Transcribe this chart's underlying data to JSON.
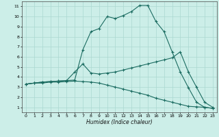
{
  "xlabel": "Humidex (Indice chaleur)",
  "background_color": "#cceee8",
  "grid_color": "#aad8d0",
  "line_color": "#1a6b60",
  "xlim": [
    -0.5,
    23.5
  ],
  "ylim": [
    0.5,
    11.5
  ],
  "xticks": [
    0,
    1,
    2,
    3,
    4,
    5,
    6,
    7,
    8,
    9,
    10,
    11,
    12,
    13,
    14,
    15,
    16,
    17,
    18,
    19,
    20,
    21,
    22,
    23
  ],
  "yticks": [
    1,
    2,
    3,
    4,
    5,
    6,
    7,
    8,
    9,
    10,
    11
  ],
  "line1_x": [
    0,
    1,
    2,
    3,
    4,
    5,
    6,
    7,
    8,
    9,
    10,
    11,
    12,
    13,
    14,
    15,
    16,
    17,
    18,
    19,
    20,
    21,
    22,
    23
  ],
  "line1_y": [
    3.3,
    3.4,
    3.5,
    3.55,
    3.6,
    3.65,
    3.7,
    6.7,
    8.5,
    8.8,
    10.0,
    9.8,
    10.1,
    10.5,
    11.1,
    11.1,
    9.5,
    8.5,
    6.5,
    4.5,
    2.95,
    1.5,
    1.0,
    0.9
  ],
  "line2_x": [
    0,
    1,
    2,
    3,
    4,
    5,
    6,
    7,
    8,
    9,
    10,
    11,
    12,
    13,
    14,
    15,
    16,
    17,
    18,
    19,
    20,
    21,
    22,
    23
  ],
  "line2_y": [
    3.3,
    3.4,
    3.5,
    3.55,
    3.6,
    3.65,
    4.5,
    5.3,
    4.4,
    4.3,
    4.4,
    4.5,
    4.7,
    4.9,
    5.1,
    5.3,
    5.5,
    5.7,
    5.9,
    6.5,
    4.5,
    3.0,
    1.5,
    1.0
  ],
  "line3_x": [
    0,
    1,
    2,
    3,
    4,
    5,
    6,
    7,
    8,
    9,
    10,
    11,
    12,
    13,
    14,
    15,
    16,
    17,
    18,
    19,
    20,
    21,
    22,
    23
  ],
  "line3_y": [
    3.3,
    3.4,
    3.4,
    3.5,
    3.5,
    3.55,
    3.6,
    3.55,
    3.5,
    3.4,
    3.2,
    3.0,
    2.8,
    2.6,
    2.4,
    2.2,
    1.9,
    1.7,
    1.5,
    1.3,
    1.1,
    1.05,
    1.0,
    0.9
  ]
}
